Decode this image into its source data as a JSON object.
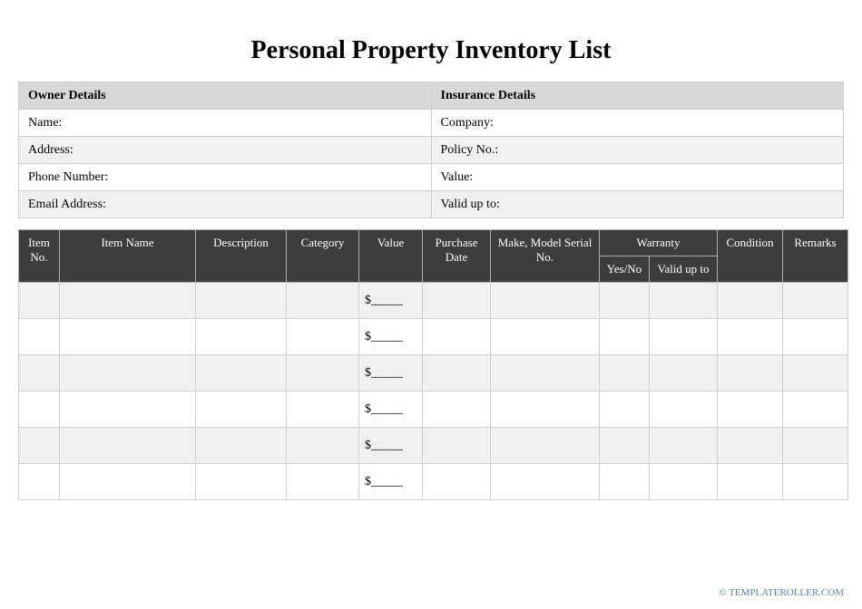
{
  "title": "Personal Property Inventory List",
  "details": {
    "owner_header": "Owner Details",
    "insurance_header": "Insurance Details",
    "rows": [
      {
        "left": "Name:",
        "right": "Company:"
      },
      {
        "left": "Address:",
        "right": "Policy No.:"
      },
      {
        "left": "Phone Number:",
        "right": "Value:"
      },
      {
        "left": "Email Address:",
        "right": "Valid up to:"
      }
    ]
  },
  "inventory": {
    "columns": {
      "item_no": "Item No.",
      "item_name": "Item Name",
      "description": "Description",
      "category": "Category",
      "value": "Value",
      "purchase_date": "Purchase Date",
      "make_model": "Make, Model Serial No.",
      "warranty": "Warranty",
      "warranty_yesno": "Yes/No",
      "warranty_valid": "Valid up to",
      "condition": "Condition",
      "remarks": "Remarks"
    },
    "column_widths": {
      "item_no": "45px",
      "item_name": "150px",
      "description": "100px",
      "category": "80px",
      "value": "70px",
      "purchase_date": "75px",
      "make_model": "120px",
      "warranty_yesno": "55px",
      "warranty_valid": "75px",
      "condition": "72px",
      "remarks": "72px"
    },
    "header_bg": "#3d3d3d",
    "header_fg": "#ffffff",
    "row_alt_bg": "#f0f0f0",
    "row_bg": "#ffffff",
    "border_color": "#d0d0d0",
    "value_placeholder": "$_____",
    "row_count": 6
  },
  "footer": "© TEMPLATEROLLER.COM"
}
